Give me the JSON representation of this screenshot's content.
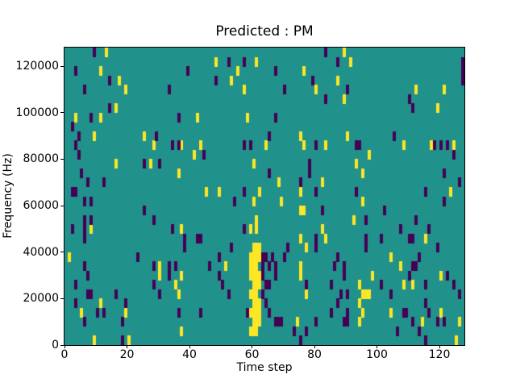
{
  "chart_data": {
    "type": "heatmap",
    "title": "Predicted : PM",
    "xlabel": "Time step",
    "ylabel": "Frequency (Hz)",
    "xlim": [
      0,
      128
    ],
    "ylim": [
      0,
      128000
    ],
    "grid_cols": 128,
    "grid_rows": 32,
    "x_ticks": [
      0,
      20,
      40,
      60,
      80,
      100,
      120
    ],
    "y_ticks": [
      0,
      20000,
      40000,
      60000,
      80000,
      100000,
      120000
    ],
    "grid": "off",
    "legend": "none",
    "colors": {
      "background": "#21918c",
      "cell_high": "#fde725",
      "cell_low": "#440154",
      "text": "#000000",
      "spine": "#000000"
    },
    "cells_high": [
      [
        13,
        31
      ],
      [
        89,
        31
      ],
      [
        48,
        30
      ],
      [
        61,
        30
      ],
      [
        91,
        30
      ],
      [
        11,
        29
      ],
      [
        55,
        29
      ],
      [
        76,
        29
      ],
      [
        17,
        28
      ],
      [
        53,
        28
      ],
      [
        87,
        28
      ],
      [
        19,
        27
      ],
      [
        57,
        27
      ],
      [
        80,
        27
      ],
      [
        112,
        27
      ],
      [
        121,
        27
      ],
      [
        89,
        26
      ],
      [
        16,
        25
      ],
      [
        119,
        25
      ],
      [
        3,
        24
      ],
      [
        11,
        24
      ],
      [
        42,
        24
      ],
      [
        58,
        24
      ],
      [
        9,
        22
      ],
      [
        25,
        22
      ],
      [
        75,
        22
      ],
      [
        90,
        22
      ],
      [
        28,
        21
      ],
      [
        37,
        21
      ],
      [
        43,
        21
      ],
      [
        64,
        21
      ],
      [
        76,
        21
      ],
      [
        83,
        21
      ],
      [
        108,
        21
      ],
      [
        117,
        21
      ],
      [
        124,
        21
      ],
      [
        41,
        20
      ],
      [
        97,
        20
      ],
      [
        16,
        19
      ],
      [
        27,
        19
      ],
      [
        60,
        19
      ],
      [
        93,
        19
      ],
      [
        36,
        18
      ],
      [
        95,
        18
      ],
      [
        68,
        17
      ],
      [
        82,
        17
      ],
      [
        45,
        16
      ],
      [
        49,
        16
      ],
      [
        62,
        16
      ],
      [
        75,
        16
      ],
      [
        123,
        16
      ],
      [
        60,
        15
      ],
      [
        69,
        15
      ],
      [
        95,
        15
      ],
      [
        75,
        14
      ],
      [
        76,
        14
      ],
      [
        61,
        13
      ],
      [
        92,
        13
      ],
      [
        8,
        12
      ],
      [
        37,
        12
      ],
      [
        59,
        12
      ],
      [
        61,
        12
      ],
      [
        82,
        12
      ],
      [
        75,
        11
      ],
      [
        83,
        11
      ],
      [
        115,
        11
      ],
      [
        60,
        10
      ],
      [
        61,
        10
      ],
      [
        62,
        10
      ],
      [
        77,
        10
      ],
      [
        1,
        9
      ],
      [
        59,
        9
      ],
      [
        60,
        9
      ],
      [
        61,
        9
      ],
      [
        62,
        9
      ],
      [
        104,
        9
      ],
      [
        30,
        8
      ],
      [
        51,
        8
      ],
      [
        59,
        8
      ],
      [
        60,
        8
      ],
      [
        61,
        8
      ],
      [
        75,
        8
      ],
      [
        107,
        8
      ],
      [
        30,
        7
      ],
      [
        37,
        7
      ],
      [
        59,
        7
      ],
      [
        60,
        7
      ],
      [
        61,
        7
      ],
      [
        62,
        7
      ],
      [
        75,
        7
      ],
      [
        98,
        7
      ],
      [
        120,
        7
      ],
      [
        35,
        6
      ],
      [
        60,
        6
      ],
      [
        61,
        6
      ],
      [
        62,
        6
      ],
      [
        94,
        6
      ],
      [
        108,
        6
      ],
      [
        111,
        6
      ],
      [
        36,
        5
      ],
      [
        59,
        5
      ],
      [
        60,
        5
      ],
      [
        61,
        5
      ],
      [
        77,
        5
      ],
      [
        95,
        5
      ],
      [
        96,
        5
      ],
      [
        97,
        5
      ],
      [
        11,
        4
      ],
      [
        60,
        4
      ],
      [
        61,
        4
      ],
      [
        62,
        4
      ],
      [
        94,
        4
      ],
      [
        5,
        3
      ],
      [
        19,
        3
      ],
      [
        59,
        3
      ],
      [
        60,
        3
      ],
      [
        61,
        3
      ],
      [
        62,
        3
      ],
      [
        95,
        3
      ],
      [
        104,
        3
      ],
      [
        120,
        3
      ],
      [
        60,
        2
      ],
      [
        61,
        2
      ],
      [
        62,
        2
      ],
      [
        74,
        2
      ],
      [
        94,
        2
      ],
      [
        114,
        2
      ],
      [
        126,
        2
      ],
      [
        37,
        1
      ],
      [
        59,
        1
      ],
      [
        60,
        1
      ],
      [
        61,
        1
      ],
      [
        9,
        0
      ],
      [
        20,
        0
      ],
      [
        125,
        0
      ]
    ],
    "cells_low": [
      [
        9,
        31
      ],
      [
        83,
        31
      ],
      [
        52,
        30
      ],
      [
        57,
        30
      ],
      [
        87,
        30
      ],
      [
        127,
        30
      ],
      [
        3,
        29
      ],
      [
        39,
        29
      ],
      [
        67,
        29
      ],
      [
        127,
        29
      ],
      [
        14,
        28
      ],
      [
        48,
        28
      ],
      [
        79,
        28
      ],
      [
        127,
        28
      ],
      [
        6,
        27
      ],
      [
        33,
        27
      ],
      [
        70,
        27
      ],
      [
        90,
        27
      ],
      [
        83,
        26
      ],
      [
        110,
        26
      ],
      [
        14,
        25
      ],
      [
        111,
        25
      ],
      [
        8,
        24
      ],
      [
        36,
        24
      ],
      [
        67,
        24
      ],
      [
        2,
        23
      ],
      [
        4,
        22
      ],
      [
        29,
        22
      ],
      [
        65,
        22
      ],
      [
        105,
        22
      ],
      [
        3,
        21
      ],
      [
        34,
        21
      ],
      [
        36,
        21
      ],
      [
        57,
        21
      ],
      [
        59,
        21
      ],
      [
        80,
        21
      ],
      [
        93,
        21
      ],
      [
        94,
        21
      ],
      [
        118,
        21
      ],
      [
        120,
        21
      ],
      [
        122,
        21
      ],
      [
        4,
        20
      ],
      [
        44,
        20
      ],
      [
        124,
        20
      ],
      [
        25,
        19
      ],
      [
        30,
        19
      ],
      [
        78,
        19
      ],
      [
        5,
        18
      ],
      [
        65,
        18
      ],
      [
        78,
        18
      ],
      [
        121,
        18
      ],
      [
        7,
        17
      ],
      [
        12,
        17
      ],
      [
        75,
        17
      ],
      [
        126,
        17
      ],
      [
        2,
        16
      ],
      [
        3,
        16
      ],
      [
        57,
        16
      ],
      [
        80,
        16
      ],
      [
        93,
        16
      ],
      [
        115,
        16
      ],
      [
        6,
        15
      ],
      [
        8,
        15
      ],
      [
        54,
        15
      ],
      [
        121,
        15
      ],
      [
        25,
        14
      ],
      [
        82,
        14
      ],
      [
        102,
        14
      ],
      [
        6,
        13
      ],
      [
        8,
        13
      ],
      [
        28,
        13
      ],
      [
        96,
        13
      ],
      [
        112,
        13
      ],
      [
        2,
        12
      ],
      [
        6,
        12
      ],
      [
        34,
        12
      ],
      [
        57,
        12
      ],
      [
        107,
        12
      ],
      [
        116,
        12
      ],
      [
        6,
        11
      ],
      [
        38,
        11
      ],
      [
        42,
        11
      ],
      [
        43,
        11
      ],
      [
        80,
        11
      ],
      [
        96,
        11
      ],
      [
        101,
        11
      ],
      [
        110,
        11
      ],
      [
        111,
        11
      ],
      [
        38,
        10
      ],
      [
        53,
        10
      ],
      [
        71,
        10
      ],
      [
        80,
        10
      ],
      [
        96,
        10
      ],
      [
        119,
        10
      ],
      [
        23,
        9
      ],
      [
        49,
        9
      ],
      [
        63,
        9
      ],
      [
        64,
        9
      ],
      [
        66,
        9
      ],
      [
        70,
        9
      ],
      [
        87,
        9
      ],
      [
        113,
        9
      ],
      [
        6,
        8
      ],
      [
        28,
        8
      ],
      [
        33,
        8
      ],
      [
        35,
        8
      ],
      [
        46,
        8
      ],
      [
        63,
        8
      ],
      [
        65,
        8
      ],
      [
        67,
        8
      ],
      [
        86,
        8
      ],
      [
        89,
        8
      ],
      [
        111,
        8
      ],
      [
        112,
        8
      ],
      [
        7,
        7
      ],
      [
        33,
        7
      ],
      [
        49,
        7
      ],
      [
        63,
        7
      ],
      [
        67,
        7
      ],
      [
        89,
        7
      ],
      [
        110,
        7
      ],
      [
        122,
        7
      ],
      [
        3,
        6
      ],
      [
        28,
        6
      ],
      [
        50,
        6
      ],
      [
        64,
        6
      ],
      [
        65,
        6
      ],
      [
        77,
        6
      ],
      [
        85,
        6
      ],
      [
        101,
        6
      ],
      [
        115,
        6
      ],
      [
        124,
        6
      ],
      [
        7,
        5
      ],
      [
        8,
        5
      ],
      [
        16,
        5
      ],
      [
        30,
        5
      ],
      [
        52,
        5
      ],
      [
        63,
        5
      ],
      [
        88,
        5
      ],
      [
        90,
        5
      ],
      [
        104,
        5
      ],
      [
        126,
        5
      ],
      [
        3,
        4
      ],
      [
        19,
        4
      ],
      [
        64,
        4
      ],
      [
        87,
        4
      ],
      [
        115,
        4
      ],
      [
        10,
        3
      ],
      [
        12,
        3
      ],
      [
        36,
        3
      ],
      [
        43,
        3
      ],
      [
        58,
        3
      ],
      [
        65,
        3
      ],
      [
        85,
        3
      ],
      [
        90,
        3
      ],
      [
        108,
        3
      ],
      [
        109,
        3
      ],
      [
        116,
        3
      ],
      [
        6,
        2
      ],
      [
        18,
        2
      ],
      [
        67,
        2
      ],
      [
        68,
        2
      ],
      [
        69,
        2
      ],
      [
        80,
        2
      ],
      [
        89,
        2
      ],
      [
        90,
        2
      ],
      [
        111,
        2
      ],
      [
        119,
        2
      ],
      [
        121,
        2
      ],
      [
        73,
        1
      ],
      [
        77,
        1
      ],
      [
        106,
        1
      ],
      [
        113,
        1
      ],
      [
        18,
        0
      ],
      [
        75,
        0
      ],
      [
        115,
        0
      ]
    ]
  }
}
